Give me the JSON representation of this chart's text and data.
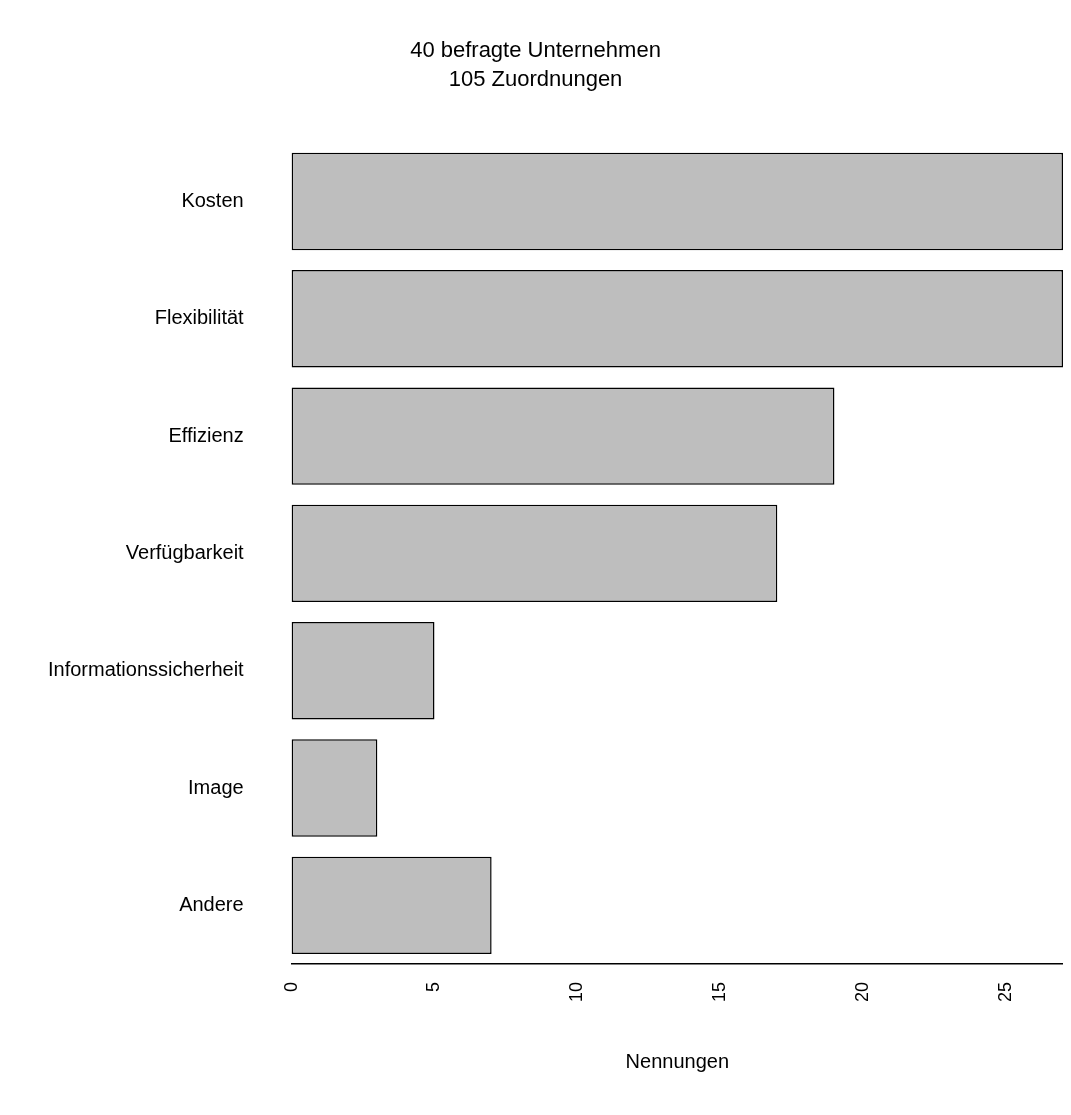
{
  "chart_data": {
    "type": "bar",
    "orientation": "horizontal",
    "title": "40 befragte Unternehmen",
    "subtitle": "105 Zuordnungen",
    "xlabel": "Nennungen",
    "categories": [
      "Kosten",
      "Flexibilität",
      "Effizienz",
      "Verfügbarkeit",
      "Informationssicherheit",
      "Image",
      "Andere"
    ],
    "values": [
      27,
      27,
      19,
      17,
      5,
      3,
      7
    ],
    "color": "#bebebe",
    "xlim": [
      0,
      27
    ],
    "xticks": [
      0,
      5,
      10,
      15,
      20,
      25
    ]
  }
}
